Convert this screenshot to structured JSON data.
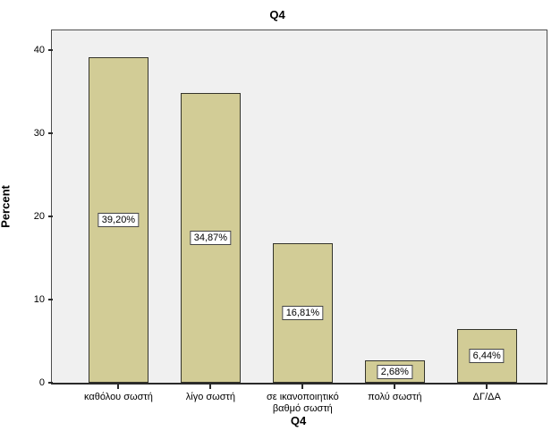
{
  "title": "Q4",
  "colors": {
    "bar_fill": "#d2cc96",
    "bar_border": "#34342b",
    "plot_bg": "#f0f0f0",
    "frame": "#4e4e4e",
    "axis": "#2a2a2a",
    "label_box_bg": "#ffffff",
    "label_box_border": "#444444"
  },
  "chart_data": {
    "type": "bar",
    "title": "Q4",
    "xlabel": "Q4",
    "ylabel": "Percent",
    "categories": [
      "καθόλου σωστή",
      "λίγο σωστή",
      "σε ικανοποιητικό βαθμό σωστή",
      "πολύ σωστή",
      "ΔΓ/ΔΑ"
    ],
    "values": [
      39.2,
      34.87,
      16.81,
      2.68,
      6.44
    ],
    "value_labels": [
      "39,20%",
      "34,87%",
      "16,81%",
      "2,68%",
      "6,44%"
    ],
    "yticks": [
      0,
      10,
      20,
      30,
      40
    ],
    "ylim": [
      0,
      42.4
    ],
    "grid": false,
    "legend": "none"
  }
}
